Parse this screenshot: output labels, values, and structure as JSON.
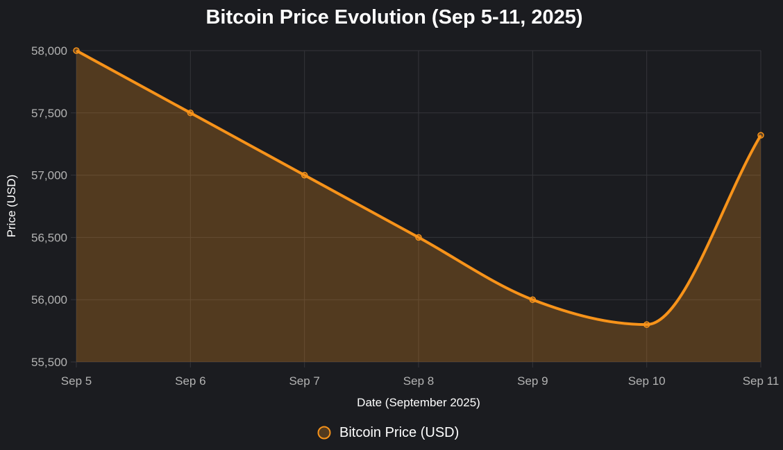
{
  "chart_data": {
    "type": "area",
    "title": "Bitcoin Price Evolution (Sep 5-11, 2025)",
    "xlabel": "Date (September 2025)",
    "ylabel": "Price (USD)",
    "categories": [
      "Sep 5",
      "Sep 6",
      "Sep 7",
      "Sep 8",
      "Sep 9",
      "Sep 10",
      "Sep 11"
    ],
    "series": [
      {
        "name": "Bitcoin Price (USD)",
        "values": [
          58000,
          57500,
          57000,
          56500,
          56000,
          55800,
          57320
        ],
        "color": "#f7931a",
        "fill": "rgba(247,147,26,0.25)"
      }
    ],
    "ylim": [
      55500,
      58000
    ],
    "yticks": [
      55500,
      56000,
      56500,
      57000,
      57500,
      58000
    ],
    "yticklabels": [
      "55,500",
      "56,000",
      "56,500",
      "57,000",
      "57,500",
      "58,000"
    ],
    "grid": true,
    "legend": "bottom-center",
    "smooth": true
  }
}
